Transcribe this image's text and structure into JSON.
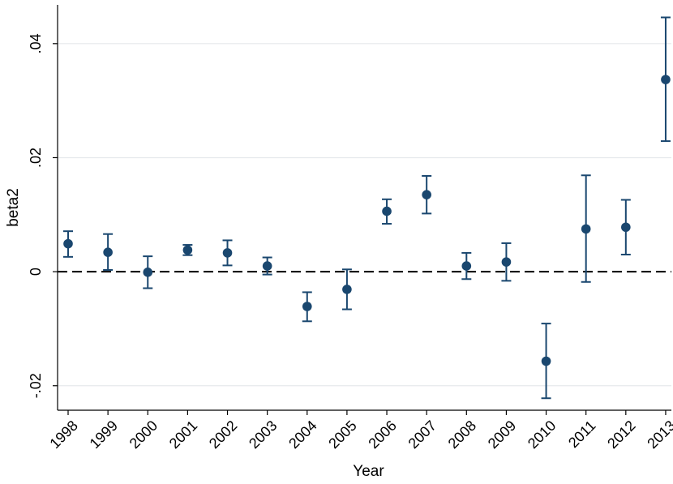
{
  "chart_data": {
    "type": "scatter",
    "title": "",
    "xlabel": "Year",
    "ylabel": "beta2",
    "x_categories": [
      "1998",
      "1999",
      "2000",
      "2001",
      "2002",
      "2003",
      "2004",
      "2005",
      "2006",
      "2007",
      "2008",
      "2009",
      "2010",
      "2011",
      "2012",
      "2013"
    ],
    "y_ticks": [
      -0.02,
      0,
      0.02,
      0.04
    ],
    "y_tick_labels": [
      "-.02",
      "0",
      ".02",
      ".04"
    ],
    "ylim": [
      -0.0243,
      0.0468
    ],
    "grid": "horizontal",
    "reference_line": {
      "y": 0,
      "style": "dashed"
    },
    "series": [
      {
        "estimate": [
          0.0049,
          0.0034,
          -0.0001,
          0.0038,
          0.0033,
          0.001,
          -0.0061,
          -0.0031,
          0.0106,
          0.0135,
          0.001,
          0.0017,
          -0.0157,
          0.0075,
          0.0078,
          0.0337
        ],
        "ci_low": [
          0.0026,
          0.0003,
          -0.0029,
          0.0029,
          0.0011,
          -0.0005,
          -0.0087,
          -0.0066,
          0.0084,
          0.0102,
          -0.0013,
          -0.0016,
          -0.0222,
          -0.0018,
          0.003,
          0.0229
        ],
        "ci_high": [
          0.0071,
          0.0066,
          0.0027,
          0.0047,
          0.0055,
          0.0025,
          -0.0036,
          0.0004,
          0.0127,
          0.0168,
          0.0033,
          0.005,
          -0.0091,
          0.0169,
          0.0126,
          0.0446
        ],
        "color": "#1a476f",
        "marker": "circle"
      }
    ]
  }
}
